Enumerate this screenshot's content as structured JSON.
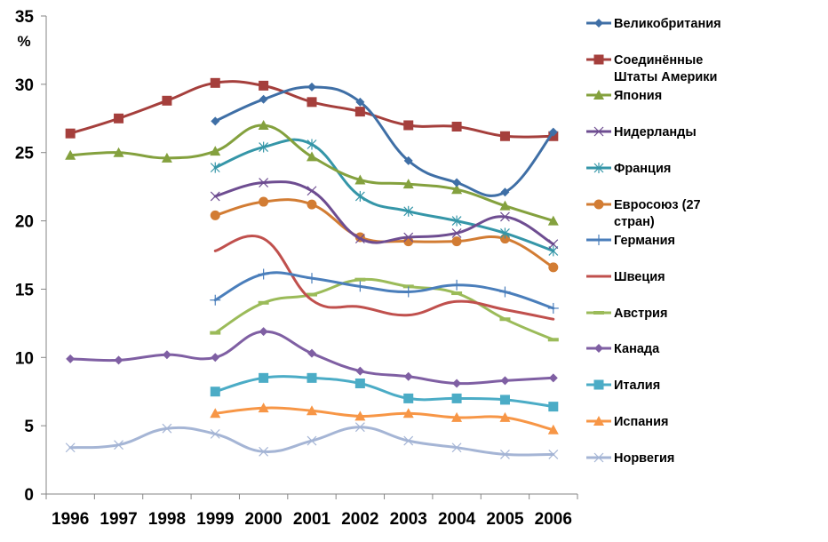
{
  "chart_data": {
    "type": "line",
    "title": "",
    "xlabel": "",
    "ylabel": "%",
    "ylim": [
      0,
      35
    ],
    "yticks": [
      "0",
      "5",
      "10",
      "15",
      "20",
      "25",
      "30",
      "35"
    ],
    "categories": [
      "1996",
      "1997",
      "1998",
      "1999",
      "2000",
      "2001",
      "2002",
      "2003",
      "2004",
      "2005",
      "2006"
    ],
    "grid": false,
    "legend_position": "right",
    "series": [
      {
        "name": "Великобритания",
        "label_lines": [
          "Великобритания"
        ],
        "color": "#3F6FA6",
        "marker": "diamond",
        "values": [
          null,
          null,
          null,
          27.3,
          28.9,
          29.8,
          28.7,
          24.4,
          22.8,
          22.1,
          26.5
        ]
      },
      {
        "name": "Соединённые Штаты Америки",
        "label_lines": [
          "Соединённые",
          "Штаты Америки"
        ],
        "color": "#A53F3C",
        "marker": "square",
        "values": [
          26.4,
          27.5,
          28.8,
          30.1,
          29.9,
          28.7,
          28.0,
          27.0,
          26.9,
          26.2,
          26.2
        ]
      },
      {
        "name": "Япония",
        "label_lines": [
          "Япония"
        ],
        "color": "#84A13E",
        "marker": "triangle",
        "values": [
          24.8,
          25.0,
          24.6,
          25.1,
          27.0,
          24.7,
          23.0,
          22.7,
          22.3,
          21.1,
          20.0
        ]
      },
      {
        "name": "Нидерланды",
        "label_lines": [
          "Нидерланды"
        ],
        "color": "#6E4D91",
        "marker": "x",
        "values": [
          null,
          null,
          null,
          21.8,
          22.8,
          22.2,
          18.7,
          18.8,
          19.1,
          20.3,
          18.3
        ]
      },
      {
        "name": "Франция",
        "label_lines": [
          "Франция"
        ],
        "color": "#3596A8",
        "marker": "star",
        "values": [
          null,
          null,
          null,
          23.9,
          25.4,
          25.6,
          21.8,
          20.7,
          20.0,
          19.1,
          17.8
        ]
      },
      {
        "name": "Евросоюз (27 стран)",
        "label_lines": [
          "Евросоюз (27",
          "стран)"
        ],
        "color": "#D27C33",
        "marker": "circle",
        "values": [
          null,
          null,
          null,
          20.4,
          21.4,
          21.2,
          18.8,
          18.5,
          18.5,
          18.7,
          16.6
        ]
      },
      {
        "name": "Германия",
        "label_lines": [
          "Германия"
        ],
        "color": "#4A7EBB",
        "marker": "plus",
        "values": [
          null,
          null,
          null,
          14.2,
          16.1,
          15.8,
          15.2,
          14.8,
          15.3,
          14.8,
          13.6
        ]
      },
      {
        "name": "Швеция",
        "label_lines": [
          "Швеция"
        ],
        "color": "#C0504D",
        "marker": "none",
        "values": [
          null,
          null,
          null,
          17.8,
          18.7,
          14.2,
          13.7,
          13.1,
          14.1,
          13.5,
          12.8
        ]
      },
      {
        "name": "Австрия",
        "label_lines": [
          "Австрия"
        ],
        "color": "#9BBB59",
        "marker": "dash",
        "values": [
          null,
          null,
          null,
          11.8,
          14.0,
          14.6,
          15.7,
          15.2,
          14.7,
          12.8,
          11.3
        ]
      },
      {
        "name": "Канада",
        "label_lines": [
          "Канада"
        ],
        "color": "#7F5FA3",
        "marker": "diamond",
        "values": [
          9.9,
          9.8,
          10.2,
          10.0,
          11.9,
          10.3,
          9.0,
          8.6,
          8.1,
          8.3,
          8.5
        ]
      },
      {
        "name": "Италия",
        "label_lines": [
          "Италия"
        ],
        "color": "#4BACC6",
        "marker": "square",
        "values": [
          null,
          null,
          null,
          7.5,
          8.5,
          8.5,
          8.1,
          7.0,
          7.0,
          6.9,
          6.4
        ]
      },
      {
        "name": "Испания",
        "label_lines": [
          "Испания"
        ],
        "color": "#F79646",
        "marker": "triangle",
        "values": [
          null,
          null,
          null,
          5.9,
          6.3,
          6.1,
          5.7,
          5.9,
          5.6,
          5.6,
          4.7
        ]
      },
      {
        "name": "Норвегия",
        "label_lines": [
          "Норвегия"
        ],
        "color": "#A5B5D5",
        "marker": "x",
        "values": [
          3.4,
          3.6,
          4.8,
          4.4,
          3.1,
          3.9,
          4.9,
          3.9,
          3.4,
          2.9,
          2.9
        ]
      }
    ]
  }
}
